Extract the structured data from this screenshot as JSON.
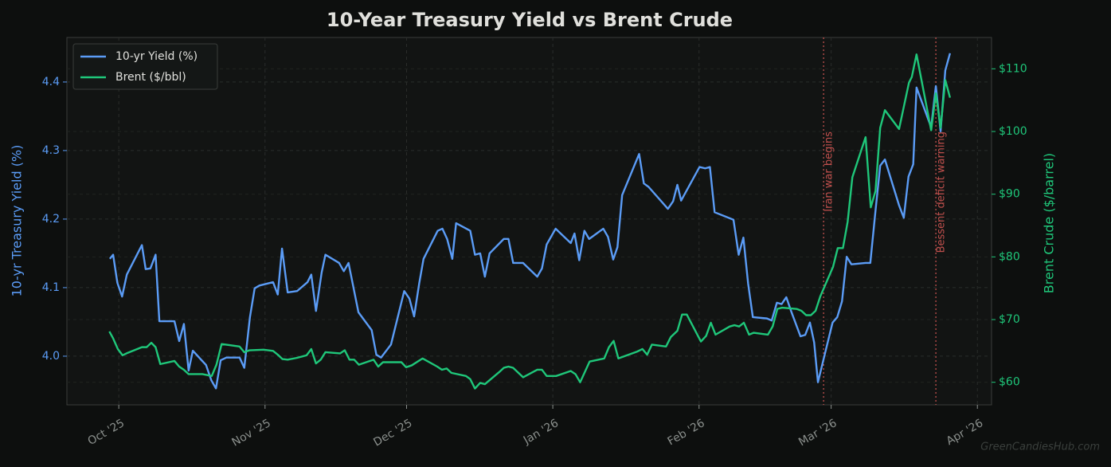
{
  "chart_data": {
    "type": "line",
    "title": "10-Year Treasury Yield vs Brent Crude",
    "y_label": "10-yr Treasury Yield (%)",
    "y2_label": "Brent Crude ($/barrel)",
    "watermark": "GreenCandiesHub.com",
    "xlim": [
      -11,
      185
    ],
    "xticks": [
      {
        "value": 0,
        "label": "Oct '25"
      },
      {
        "value": 31,
        "label": "Nov '25"
      },
      {
        "value": 61,
        "label": "Dec '25"
      },
      {
        "value": 92,
        "label": "Jan '26"
      },
      {
        "value": 123,
        "label": "Feb '26"
      },
      {
        "value": 151,
        "label": "Mar '26"
      },
      {
        "value": 182,
        "label": "Apr '26"
      }
    ],
    "ylim": [
      3.929,
      4.465
    ],
    "yticks": [
      {
        "value": 4,
        "label": "4.0"
      },
      4.1,
      4.2,
      4.3,
      4.4
    ],
    "y2lim": [
      56.4,
      115
    ],
    "y2ticks": [
      {
        "value": 60,
        "label": "$60"
      },
      {
        "value": 70,
        "label": "$70"
      },
      {
        "value": 80,
        "label": "$80"
      },
      {
        "value": 90,
        "label": "$90"
      },
      {
        "value": 100,
        "label": "$100"
      },
      {
        "value": 110,
        "label": "$110"
      }
    ],
    "grid": true,
    "legend": "upper left",
    "annotations": [
      {
        "x": 149.4,
        "text": "Iran war begins",
        "color": "#c0504d"
      },
      {
        "x": 173.2,
        "text": "Bessent deficit warning",
        "color": "#c0504d"
      }
    ],
    "series": [
      {
        "name": "10-yr Yield (%)",
        "color": "#5b9cf6",
        "axis": "y",
        "x": [
          -1.9,
          -1.2,
          -0.3,
          0.7,
          1.7,
          4.9,
          5.7,
          6.7,
          7.8,
          8.6,
          11.8,
          12.8,
          13.8,
          14.8,
          15.7,
          18.5,
          19.6,
          20.6,
          21.6,
          22.8,
          25.6,
          26.6,
          27.8,
          28.8,
          29.8,
          32.7,
          33.7,
          34.6,
          35.8,
          37.8,
          40.0,
          40.8,
          41.8,
          43.0,
          43.8,
          46.7,
          47.7,
          48.7,
          50.8,
          53.6,
          54.6,
          55.6,
          57.7,
          60.5,
          61.6,
          62.6,
          63.7,
          64.6,
          67.6,
          68.6,
          69.6,
          70.7,
          71.5,
          74.5,
          75.5,
          76.6,
          77.6,
          78.6,
          81.6,
          82.6,
          83.6,
          85.7,
          88.7,
          89.7,
          90.7,
          92.6,
          95.8,
          96.6,
          97.6,
          98.7,
          99.7,
          102.7,
          103.7,
          104.8,
          105.7,
          106.7,
          110.3,
          111.3,
          112.3,
          116.4,
          117.5,
          118.4,
          119.2,
          123.1,
          124.3,
          125.3,
          126.3,
          130.3,
          131.4,
          132.4,
          133.4,
          134.4,
          137.4,
          138.4,
          139.5,
          140.5,
          141.5,
          142.5,
          144.5,
          145.5,
          146.5,
          147.4,
          148.2,
          151.3,
          152.3,
          153.3,
          154.3,
          155.3,
          158.3,
          159.3,
          160.4,
          161.4,
          162.4,
          165.4,
          166.4,
          167.4,
          168.4,
          169.1,
          172.2,
          173.2,
          174.2,
          175.2,
          176.2
        ],
        "values": [
          4.142,
          4.148,
          4.107,
          4.087,
          4.119,
          4.162,
          4.127,
          4.128,
          4.148,
          4.051,
          4.051,
          4.022,
          4.047,
          3.979,
          4.008,
          3.987,
          3.965,
          3.953,
          3.994,
          3.998,
          3.998,
          3.983,
          4.057,
          4.099,
          4.103,
          4.108,
          4.09,
          4.157,
          4.093,
          4.095,
          4.108,
          4.119,
          4.066,
          4.122,
          4.148,
          4.136,
          4.124,
          4.136,
          4.064,
          4.038,
          4.002,
          3.998,
          4.017,
          4.095,
          4.084,
          4.058,
          4.107,
          4.142,
          4.183,
          4.186,
          4.171,
          4.142,
          4.194,
          4.183,
          4.148,
          4.15,
          4.116,
          4.15,
          4.171,
          4.171,
          4.136,
          4.136,
          4.116,
          4.128,
          4.163,
          4.186,
          4.165,
          4.179,
          4.14,
          4.183,
          4.171,
          4.186,
          4.174,
          4.141,
          4.159,
          4.235,
          4.295,
          4.252,
          4.247,
          4.215,
          4.226,
          4.25,
          4.227,
          4.276,
          4.274,
          4.276,
          4.21,
          4.199,
          4.148,
          4.173,
          4.106,
          4.057,
          4.055,
          4.052,
          4.078,
          4.076,
          4.086,
          4.066,
          4.029,
          4.031,
          4.049,
          4.02,
          3.962,
          4.049,
          4.057,
          4.08,
          4.145,
          4.134,
          4.136,
          4.136,
          4.212,
          4.278,
          4.287,
          4.22,
          4.202,
          4.262,
          4.28,
          4.392,
          4.334,
          4.394,
          4.328,
          4.417,
          4.442
        ]
      },
      {
        "name": "Brent ($/bbl)",
        "color": "#1fc77a",
        "axis": "y2",
        "x": [
          -2.0,
          -1.2,
          -0.2,
          0.8,
          1.9,
          3.9,
          4.9,
          5.9,
          6.9,
          7.8,
          8.8,
          11.8,
          12.8,
          13.8,
          14.8,
          17.7,
          19.7,
          20.7,
          21.8,
          25.6,
          26.6,
          27.7,
          30.7,
          32.7,
          33.7,
          34.7,
          35.8,
          37.8,
          39.8,
          40.8,
          41.8,
          42.8,
          43.8,
          46.9,
          47.9,
          48.9,
          49.9,
          50.9,
          54.0,
          55.0,
          56.0,
          59.9,
          60.9,
          62.1,
          64.4,
          67.5,
          68.5,
          69.5,
          70.5,
          73.6,
          74.5,
          75.5,
          76.6,
          77.6,
          80.6,
          81.6,
          82.6,
          83.6,
          85.7,
          88.7,
          89.7,
          90.7,
          92.7,
          95.8,
          96.8,
          97.8,
          99.8,
          102.9,
          103.9,
          104.9,
          105.9,
          109.9,
          111.0,
          112.0,
          113.0,
          116.0,
          117.0,
          118.4,
          119.4,
          120.4,
          123.4,
          124.5,
          125.5,
          126.5,
          129.5,
          130.5,
          131.5,
          132.5,
          133.6,
          134.6,
          137.6,
          138.6,
          139.6,
          140.6,
          143.7,
          144.7,
          145.7,
          146.7,
          147.7,
          148.7,
          151.4,
          152.4,
          153.5,
          154.5,
          155.5,
          158.3,
          159.4,
          160.4,
          161.4,
          162.4,
          165.4,
          167.5,
          168.1,
          169.1,
          172.2,
          173.2,
          174.2,
          175.2,
          176.2
        ],
        "values": [
          68.1,
          67.0,
          65.3,
          64.3,
          64.7,
          65.3,
          65.6,
          65.6,
          66.3,
          65.6,
          62.9,
          63.4,
          62.5,
          62.0,
          61.3,
          61.3,
          61.0,
          62.8,
          66.1,
          65.7,
          64.8,
          65.1,
          65.2,
          65.0,
          64.4,
          63.7,
          63.6,
          63.9,
          64.3,
          65.3,
          63.0,
          63.6,
          64.8,
          64.6,
          65.1,
          63.6,
          63.6,
          62.8,
          63.6,
          62.5,
          63.2,
          63.2,
          62.4,
          62.7,
          63.8,
          62.5,
          62.0,
          62.2,
          61.5,
          61.0,
          60.5,
          59.0,
          59.9,
          59.7,
          61.6,
          62.3,
          62.5,
          62.3,
          60.8,
          62.0,
          62.0,
          61.0,
          61.0,
          61.8,
          61.3,
          60.0,
          63.3,
          63.8,
          65.6,
          66.6,
          63.8,
          64.9,
          65.3,
          64.4,
          66.0,
          65.7,
          67.2,
          68.2,
          70.8,
          70.8,
          66.5,
          67.4,
          69.5,
          67.6,
          68.9,
          69.1,
          68.9,
          69.5,
          67.6,
          67.9,
          67.6,
          68.9,
          71.7,
          71.9,
          71.7,
          71.4,
          70.7,
          70.7,
          71.4,
          73.7,
          78.4,
          81.4,
          81.4,
          85.6,
          92.7,
          99.1,
          87.9,
          90.5,
          100.6,
          103.4,
          100.4,
          107.8,
          108.7,
          112.3,
          100.2,
          106.1,
          100.6,
          108.2,
          105.4
        ]
      }
    ]
  }
}
